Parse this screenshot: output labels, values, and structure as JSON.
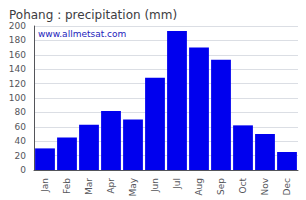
{
  "chart_data": {
    "type": "bar",
    "title": "Pohang : precipitation (mm)",
    "categories": [
      "Jan",
      "Feb",
      "Mar",
      "Apr",
      "May",
      "Jun",
      "Jul",
      "Aug",
      "Sep",
      "Oct",
      "Nov",
      "Dec"
    ],
    "values": [
      30,
      45,
      63,
      82,
      70,
      128,
      193,
      170,
      153,
      62,
      50,
      25
    ],
    "color": "#0000ee",
    "ylim": [
      0,
      200
    ],
    "yticks": [
      0,
      20,
      40,
      60,
      80,
      100,
      120,
      140,
      160,
      180,
      200
    ],
    "grid": true,
    "annotations": [
      "www.allmetsat.com"
    ]
  }
}
